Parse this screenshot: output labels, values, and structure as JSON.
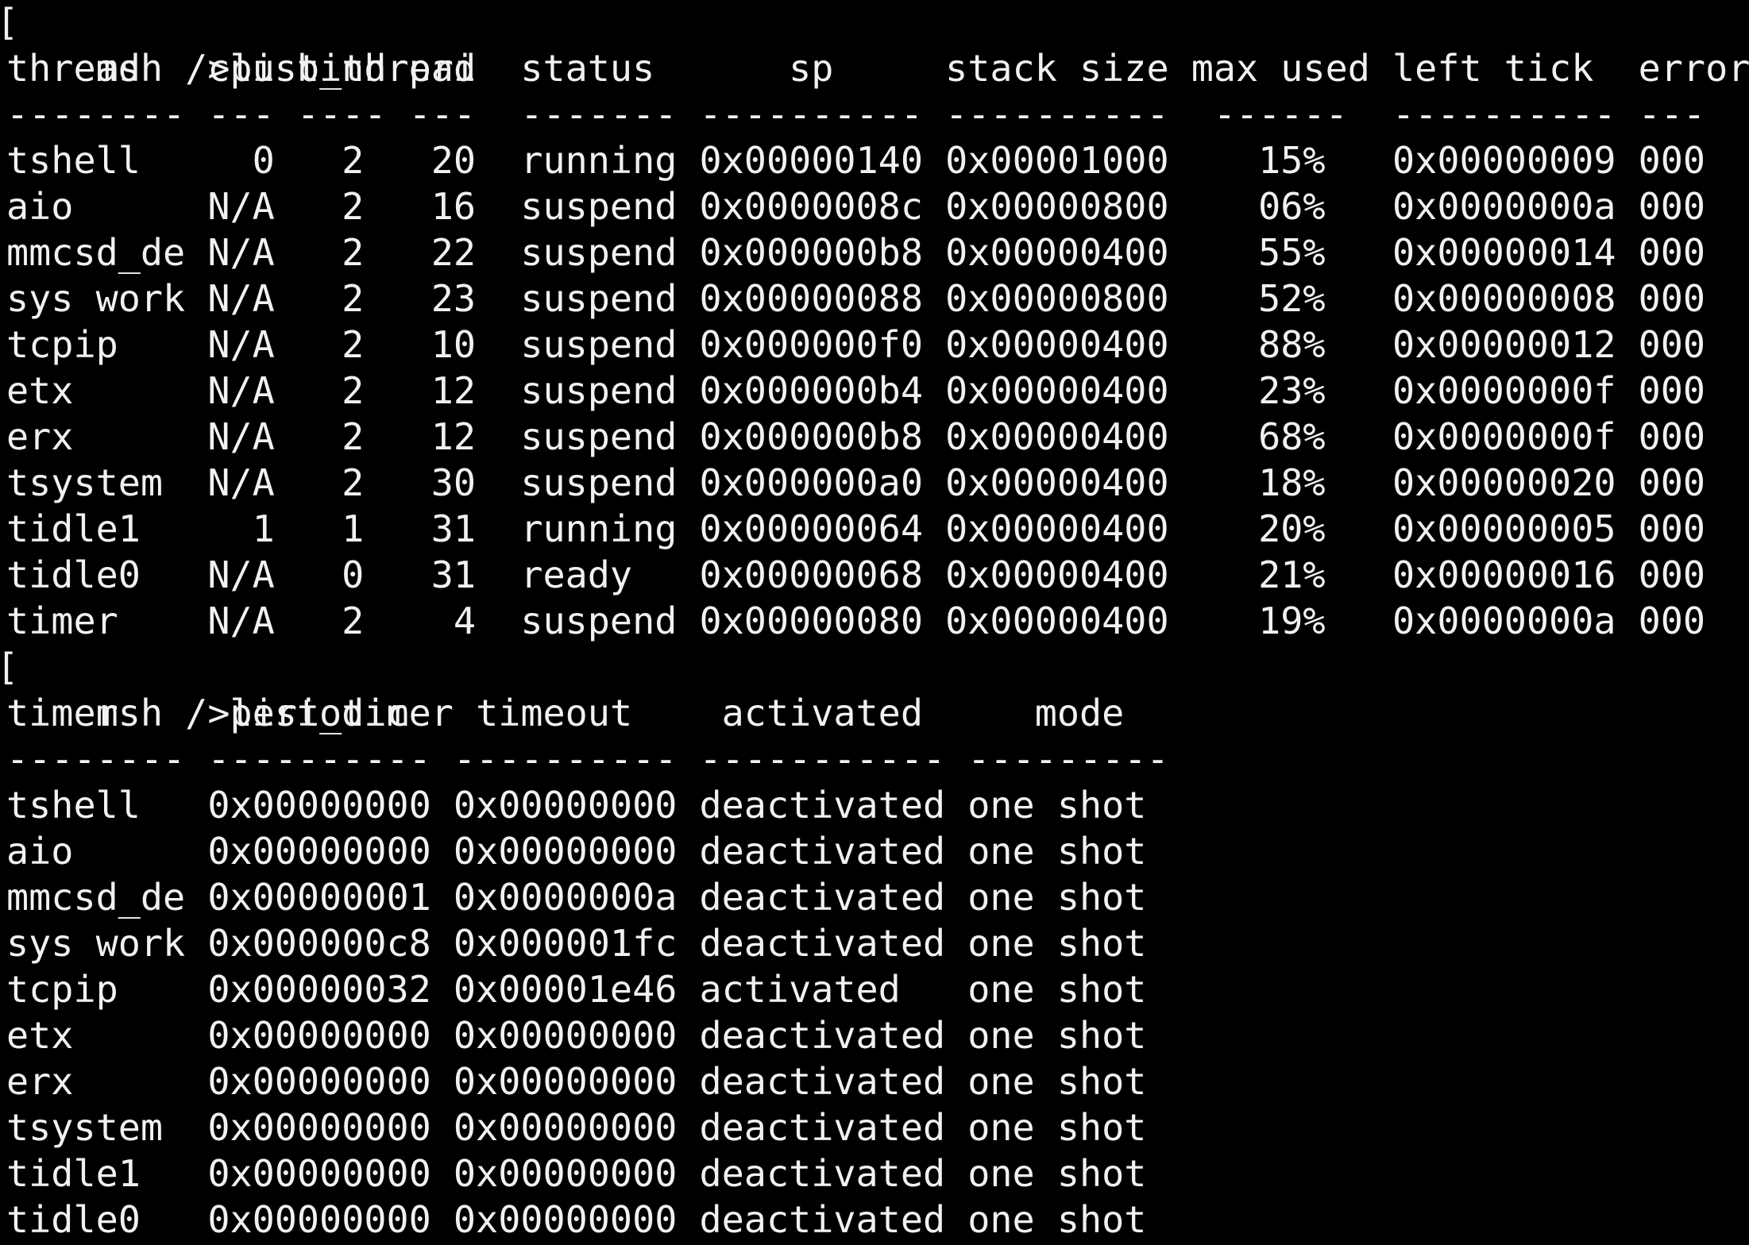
{
  "colors": {
    "background": "#000000",
    "foreground": "#f1f1f1"
  },
  "shell": {
    "prompt": "msh />",
    "clipped_glyph": "[",
    "command_list_thread": "list_thread",
    "command_list_timer": "list_timer"
  },
  "thread_table": {
    "headers": [
      "thread",
      "cpu",
      "bind",
      "pri",
      "status",
      "sp",
      "stack size",
      "max used",
      "left tick",
      "error"
    ],
    "separator": "-------- --- ---- ---  ------- ---------- ----------  ------  ---------- ---",
    "rows": [
      {
        "thread": "tshell",
        "cpu": "0",
        "bind": "2",
        "pri": "20",
        "status": "running",
        "sp": "0x00000140",
        "stack_size": "0x00001000",
        "max_used": "15%",
        "left_tick": "0x00000009",
        "error": "000"
      },
      {
        "thread": "aio",
        "cpu": "N/A",
        "bind": "2",
        "pri": "16",
        "status": "suspend",
        "sp": "0x0000008c",
        "stack_size": "0x00000800",
        "max_used": "06%",
        "left_tick": "0x0000000a",
        "error": "000"
      },
      {
        "thread": "mmcsd_de",
        "cpu": "N/A",
        "bind": "2",
        "pri": "22",
        "status": "suspend",
        "sp": "0x000000b8",
        "stack_size": "0x00000400",
        "max_used": "55%",
        "left_tick": "0x00000014",
        "error": "000"
      },
      {
        "thread": "sys work",
        "cpu": "N/A",
        "bind": "2",
        "pri": "23",
        "status": "suspend",
        "sp": "0x00000088",
        "stack_size": "0x00000800",
        "max_used": "52%",
        "left_tick": "0x00000008",
        "error": "000"
      },
      {
        "thread": "tcpip",
        "cpu": "N/A",
        "bind": "2",
        "pri": "10",
        "status": "suspend",
        "sp": "0x000000f0",
        "stack_size": "0x00000400",
        "max_used": "88%",
        "left_tick": "0x00000012",
        "error": "000"
      },
      {
        "thread": "etx",
        "cpu": "N/A",
        "bind": "2",
        "pri": "12",
        "status": "suspend",
        "sp": "0x000000b4",
        "stack_size": "0x00000400",
        "max_used": "23%",
        "left_tick": "0x0000000f",
        "error": "000"
      },
      {
        "thread": "erx",
        "cpu": "N/A",
        "bind": "2",
        "pri": "12",
        "status": "suspend",
        "sp": "0x000000b8",
        "stack_size": "0x00000400",
        "max_used": "68%",
        "left_tick": "0x0000000f",
        "error": "000"
      },
      {
        "thread": "tsystem",
        "cpu": "N/A",
        "bind": "2",
        "pri": "30",
        "status": "suspend",
        "sp": "0x000000a0",
        "stack_size": "0x00000400",
        "max_used": "18%",
        "left_tick": "0x00000020",
        "error": "000"
      },
      {
        "thread": "tidle1",
        "cpu": "1",
        "bind": "1",
        "pri": "31",
        "status": "running",
        "sp": "0x00000064",
        "stack_size": "0x00000400",
        "max_used": "20%",
        "left_tick": "0x00000005",
        "error": "000"
      },
      {
        "thread": "tidle0",
        "cpu": "N/A",
        "bind": "0",
        "pri": "31",
        "status": "ready",
        "sp": "0x00000068",
        "stack_size": "0x00000400",
        "max_used": "21%",
        "left_tick": "0x00000016",
        "error": "000"
      },
      {
        "thread": "timer",
        "cpu": "N/A",
        "bind": "2",
        "pri": "4",
        "status": "suspend",
        "sp": "0x00000080",
        "stack_size": "0x00000400",
        "max_used": "19%",
        "left_tick": "0x0000000a",
        "error": "000"
      }
    ]
  },
  "timer_table": {
    "headers": [
      "timer",
      "periodic",
      "timeout",
      "activated",
      "mode"
    ],
    "separator": "-------- ---------- ---------- ----------- ---------",
    "rows": [
      {
        "timer": "tshell",
        "periodic": "0x00000000",
        "timeout": "0x00000000",
        "activated": "deactivated",
        "mode": "one shot"
      },
      {
        "timer": "aio",
        "periodic": "0x00000000",
        "timeout": "0x00000000",
        "activated": "deactivated",
        "mode": "one shot"
      },
      {
        "timer": "mmcsd_de",
        "periodic": "0x00000001",
        "timeout": "0x0000000a",
        "activated": "deactivated",
        "mode": "one shot"
      },
      {
        "timer": "sys work",
        "periodic": "0x000000c8",
        "timeout": "0x000001fc",
        "activated": "deactivated",
        "mode": "one shot"
      },
      {
        "timer": "tcpip",
        "periodic": "0x00000032",
        "timeout": "0x00001e46",
        "activated": "activated",
        "mode": "one shot"
      },
      {
        "timer": "etx",
        "periodic": "0x00000000",
        "timeout": "0x00000000",
        "activated": "deactivated",
        "mode": "one shot"
      },
      {
        "timer": "erx",
        "periodic": "0x00000000",
        "timeout": "0x00000000",
        "activated": "deactivated",
        "mode": "one shot"
      },
      {
        "timer": "tsystem",
        "periodic": "0x00000000",
        "timeout": "0x00000000",
        "activated": "deactivated",
        "mode": "one shot"
      },
      {
        "timer": "tidle1",
        "periodic": "0x00000000",
        "timeout": "0x00000000",
        "activated": "deactivated",
        "mode": "one shot"
      },
      {
        "timer": "tidle0",
        "periodic": "0x00000000",
        "timeout": "0x00000000",
        "activated": "deactivated",
        "mode": "one shot"
      }
    ]
  }
}
